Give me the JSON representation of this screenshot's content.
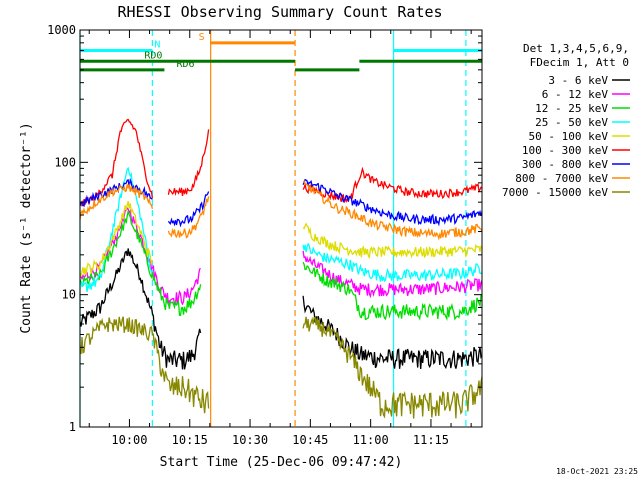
{
  "chart_data": {
    "type": "line",
    "title": "RHESSI Observing Summary Count Rates",
    "xlabel": "Start Time (25-Dec-06 09:47:42)",
    "ylabel": "Count Rate (s⁻¹ detector⁻¹)",
    "y_scale": "log",
    "ylim": [
      1,
      1000
    ],
    "xlim_minutes": [
      0,
      100
    ],
    "y_ticks": [
      "1",
      "10",
      "100",
      "1000"
    ],
    "x_ticks": [
      {
        "label": "10:00",
        "t": 12.3
      },
      {
        "label": "10:15",
        "t": 27.3
      },
      {
        "label": "10:30",
        "t": 42.3
      },
      {
        "label": "10:45",
        "t": 57.3
      },
      {
        "label": "11:00",
        "t": 72.3
      },
      {
        "label": "11:15",
        "t": 87.3
      }
    ],
    "legend_header": [
      "Det 1,3,4,5,6,9,",
      "FDecim 1, Att 0"
    ],
    "footer": "18-Oct-2021 23:25",
    "series": [
      {
        "name": "3 - 6 keV",
        "color": "#000000",
        "segments": [
          [
            [
              0,
              6
            ],
            [
              5,
              8
            ],
            [
              9,
              14
            ],
            [
              12,
              22
            ],
            [
              15,
              14
            ],
            [
              18,
              7
            ],
            [
              20,
              4
            ],
            [
              22,
              3.2
            ],
            [
              26,
              3.2
            ],
            [
              28,
              3.5
            ],
            [
              30,
              5
            ]
          ],
          [
            [
              55.5,
              9
            ],
            [
              58,
              7
            ],
            [
              61,
              6
            ],
            [
              64,
              5
            ],
            [
              67,
              4
            ],
            [
              70,
              3.5
            ],
            [
              75,
              3.3
            ],
            [
              85,
              3.3
            ],
            [
              95,
              3.3
            ],
            [
              100,
              3.5
            ]
          ]
        ]
      },
      {
        "name": "6 - 12 keV",
        "color": "#ff00ff",
        "segments": [
          [
            [
              0,
              13
            ],
            [
              5,
              16
            ],
            [
              9,
              28
            ],
            [
              12,
              45
            ],
            [
              15,
              28
            ],
            [
              18,
              16
            ],
            [
              20,
              11
            ],
            [
              22,
              9.5
            ],
            [
              26,
              9.5
            ],
            [
              28,
              11
            ],
            [
              30,
              15
            ]
          ],
          [
            [
              55.5,
              20
            ],
            [
              58,
              17
            ],
            [
              61,
              15
            ],
            [
              64,
              13
            ],
            [
              67,
              12
            ],
            [
              70,
              11
            ],
            [
              75,
              11
            ],
            [
              85,
              11
            ],
            [
              95,
              11.5
            ],
            [
              100,
              12
            ]
          ]
        ]
      },
      {
        "name": "12 - 25 keV",
        "color": "#00dd00",
        "segments": [
          [
            [
              0,
              12
            ],
            [
              5,
              14
            ],
            [
              9,
              25
            ],
            [
              12,
              40
            ],
            [
              15,
              25
            ],
            [
              18,
              14
            ],
            [
              20,
              10
            ],
            [
              22,
              8
            ],
            [
              26,
              8
            ],
            [
              28,
              9
            ],
            [
              30,
              12
            ]
          ],
          [
            [
              55.5,
              17
            ],
            [
              58,
              15
            ],
            [
              61,
              13
            ],
            [
              64,
              12
            ],
            [
              67,
              11
            ],
            [
              70,
              7.5
            ],
            [
              75,
              7.5
            ],
            [
              85,
              7.5
            ],
            [
              95,
              7.5
            ],
            [
              100,
              9
            ]
          ]
        ]
      },
      {
        "name": "25 - 50 keV",
        "color": "#00ffff",
        "segments": [
          [
            [
              0,
              11
            ],
            [
              5,
              13
            ],
            [
              9,
              40
            ],
            [
              12,
              95
            ],
            [
              15,
              40
            ],
            [
              18,
              14
            ]
          ],
          [
            [
              55.5,
              24
            ],
            [
              58,
              21
            ],
            [
              61,
              19
            ],
            [
              64,
              18
            ],
            [
              67,
              17
            ],
            [
              70,
              15
            ],
            [
              75,
              14
            ],
            [
              85,
              14
            ],
            [
              95,
              14.5
            ],
            [
              100,
              16
            ]
          ]
        ]
      },
      {
        "name": "50 - 100 keV",
        "color": "#dddd00",
        "segments": [
          [
            [
              0,
              15
            ],
            [
              5,
              17
            ],
            [
              9,
              30
            ],
            [
              12,
              50
            ],
            [
              15,
              30
            ],
            [
              18,
              17
            ]
          ],
          [
            [
              55.5,
              34
            ],
            [
              58,
              28
            ],
            [
              61,
              25
            ],
            [
              64,
              23
            ],
            [
              67,
              22
            ],
            [
              70,
              21
            ],
            [
              75,
              21
            ],
            [
              85,
              21
            ],
            [
              95,
              21.5
            ],
            [
              100,
              22
            ]
          ]
        ]
      },
      {
        "name": "100 - 300 keV",
        "color": "#ff0000",
        "segments": [
          [
            [
              0,
              48
            ],
            [
              4,
              55
            ],
            [
              8,
              80
            ],
            [
              10,
              170
            ],
            [
              12,
              210
            ],
            [
              14,
              170
            ],
            [
              16,
              90
            ],
            [
              18,
              55
            ]
          ],
          [
            [
              22,
              60
            ],
            [
              26,
              60
            ],
            [
              28,
              65
            ],
            [
              30,
              90
            ],
            [
              32,
              170
            ]
          ],
          [
            [
              55.5,
              65
            ],
            [
              58,
              62
            ],
            [
              61,
              58
            ],
            [
              64,
              55
            ],
            [
              67,
              52
            ],
            [
              70,
              85
            ],
            [
              73,
              72
            ],
            [
              77,
              65
            ],
            [
              81,
              60
            ],
            [
              85,
              58
            ],
            [
              90,
              58
            ],
            [
              95,
              60
            ],
            [
              100,
              65
            ]
          ]
        ]
      },
      {
        "name": "300 - 800 keV",
        "color": "#0000ff",
        "segments": [
          [
            [
              0,
              48
            ],
            [
              4,
              55
            ],
            [
              8,
              62
            ],
            [
              12,
              70
            ],
            [
              16,
              60
            ],
            [
              18,
              52
            ]
          ],
          [
            [
              22,
              37
            ],
            [
              26,
              36
            ],
            [
              28,
              38
            ],
            [
              30,
              45
            ],
            [
              32,
              60
            ]
          ],
          [
            [
              55.5,
              70
            ],
            [
              58,
              68
            ],
            [
              61,
              63
            ],
            [
              64,
              56
            ],
            [
              67,
              52
            ],
            [
              70,
              48
            ],
            [
              73,
              44
            ],
            [
              77,
              40
            ],
            [
              81,
              38
            ],
            [
              85,
              37
            ],
            [
              90,
              37
            ],
            [
              95,
              38
            ],
            [
              100,
              42
            ]
          ]
        ]
      },
      {
        "name": "800 - 7000 keV",
        "color": "#ff8800",
        "segments": [
          [
            [
              0,
              40
            ],
            [
              4,
              50
            ],
            [
              8,
              60
            ],
            [
              12,
              65
            ],
            [
              16,
              55
            ],
            [
              18,
              45
            ]
          ],
          [
            [
              22,
              30
            ],
            [
              26,
              29
            ],
            [
              28,
              31
            ],
            [
              30,
              38
            ],
            [
              32,
              55
            ]
          ],
          [
            [
              55.5,
              68
            ],
            [
              58,
              62
            ],
            [
              61,
              52
            ],
            [
              64,
              45
            ],
            [
              67,
              42
            ],
            [
              70,
              38
            ],
            [
              73,
              34
            ],
            [
              77,
              32
            ],
            [
              81,
              30
            ],
            [
              85,
              29
            ],
            [
              90,
              29
            ],
            [
              95,
              30
            ],
            [
              100,
              32
            ]
          ]
        ]
      },
      {
        "name": "7000 - 15000 keV",
        "color": "#888800",
        "segments": [
          [
            [
              0,
              4
            ],
            [
              6,
              6
            ],
            [
              12,
              6
            ],
            [
              18,
              5
            ],
            [
              20,
              3
            ],
            [
              22,
              2
            ],
            [
              26,
              2
            ],
            [
              30,
              1.6
            ],
            [
              32,
              1.5
            ]
          ],
          [
            [
              55.5,
              6
            ],
            [
              58,
              6
            ],
            [
              61,
              5.5
            ],
            [
              64,
              4.5
            ],
            [
              67,
              3.5
            ],
            [
              70,
              2.5
            ],
            [
              75,
              1.5
            ],
            [
              85,
              1.5
            ],
            [
              95,
              1.5
            ],
            [
              100,
              2
            ]
          ]
        ]
      }
    ],
    "state_bars": [
      {
        "label": "N",
        "color": "#00ffff",
        "t0": 0,
        "t1": 18,
        "y": 700,
        "label_t": 18.5
      },
      {
        "label": "",
        "color": "#00ffff",
        "t0": 78,
        "t1": 100,
        "y": 700,
        "label_t": null
      },
      {
        "label": "S",
        "color": "#ff8800",
        "t0": 32.5,
        "t1": 53.5,
        "y": 800,
        "label_t": 29.5
      },
      {
        "label": "RD0",
        "color": "#007700",
        "t0": 0,
        "t1": 53.5,
        "y": 580,
        "label_t": 16
      },
      {
        "label": "",
        "color": "#007700",
        "t0": 53.5,
        "t1": 69.5,
        "y": 500,
        "label_t": null
      },
      {
        "label": "",
        "color": "#007700",
        "t0": 69.5,
        "t1": 100,
        "y": 580,
        "label_t": null
      },
      {
        "label": "RD6",
        "color": "#007700",
        "t0": 0,
        "t1": 21,
        "y": 500,
        "label_t": 24
      }
    ],
    "vlines": [
      {
        "t": 0,
        "color": "#00ffff",
        "dash": false
      },
      {
        "t": 18,
        "color": "#00ffff",
        "dash": true
      },
      {
        "t": 32.5,
        "color": "#ff8800",
        "dash": false
      },
      {
        "t": 53.5,
        "color": "#ff8800",
        "dash": true
      },
      {
        "t": 78,
        "color": "#00ffff",
        "dash": false
      },
      {
        "t": 96,
        "color": "#00ffff",
        "dash": true
      }
    ]
  }
}
